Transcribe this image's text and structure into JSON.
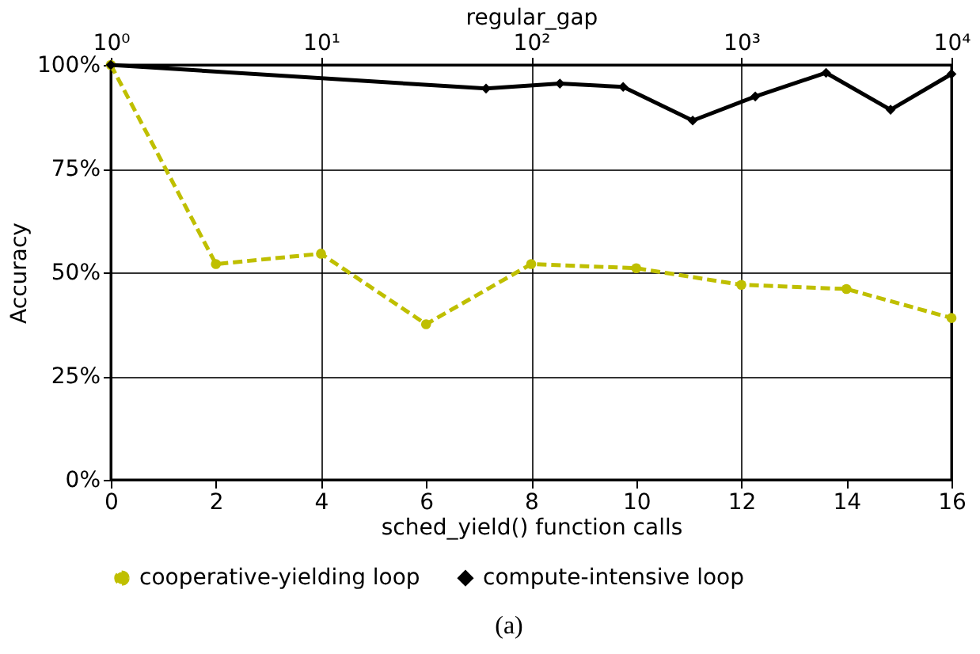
{
  "chart_data": {
    "type": "line",
    "xlabel": "sched_yield() function calls",
    "x2label": "regular_gap",
    "ylabel": "Accuracy",
    "annotations": [
      "(a)"
    ],
    "xlim": [
      0,
      16
    ],
    "xticks": [
      0,
      2,
      4,
      6,
      8,
      10,
      12,
      14,
      16
    ],
    "x2lim": [
      1,
      10000
    ],
    "x2ticks": [
      {
        "value": 1,
        "label": "10⁰"
      },
      {
        "value": 10,
        "label": "10¹"
      },
      {
        "value": 100,
        "label": "10²"
      },
      {
        "value": 1000,
        "label": "10³"
      },
      {
        "value": 10000,
        "label": "10⁴"
      }
    ],
    "log": "x2",
    "ylim": [
      0,
      100
    ],
    "yticks": [
      {
        "value": 0,
        "label": "0%"
      },
      {
        "value": 25,
        "label": "25%"
      },
      {
        "value": 50,
        "label": "50%"
      },
      {
        "value": 75,
        "label": "75%"
      },
      {
        "value": 100,
        "label": "100%"
      }
    ],
    "grid": true,
    "legend": "bottom",
    "series": [
      {
        "name": "cooperative-yielding loop",
        "color": "#bfbf00",
        "marker": "circle",
        "line_style": "dashed",
        "x": [
          0,
          2,
          4,
          6,
          8,
          10,
          12,
          14,
          16
        ],
        "values": [
          100,
          52,
          54.5,
          37.5,
          52,
          51,
          47,
          46,
          39
        ]
      },
      {
        "name": "compute-intensive loop",
        "color": "#000000",
        "marker": "diamond",
        "line_style": "solid",
        "axis": "x2",
        "x": [
          1,
          61,
          137,
          274,
          587,
          1165,
          2530,
          5130,
          10000
        ],
        "values": [
          100,
          94.3,
          95.5,
          94.7,
          86.6,
          92.4,
          98.1,
          89.2,
          97.8
        ]
      }
    ]
  }
}
